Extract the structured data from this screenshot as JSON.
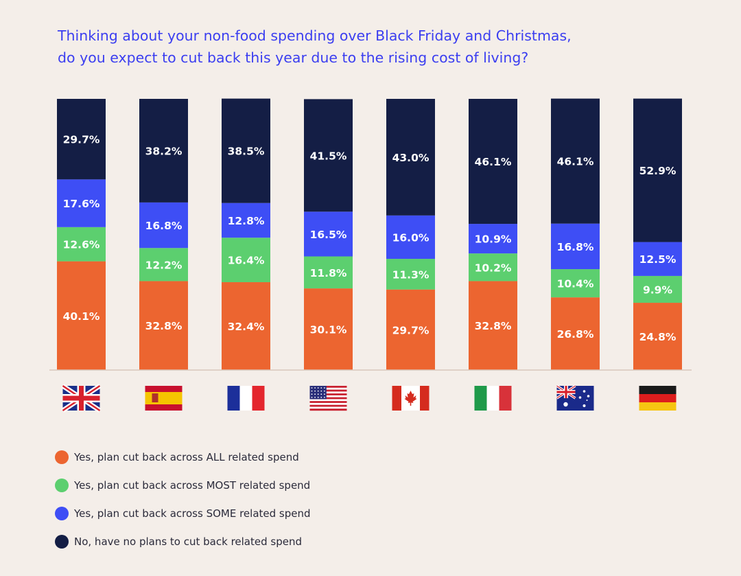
{
  "title_lines": [
    "Thinking about your non-food spending over Black Friday and Christmas,",
    "do you expect to cut back this year due to the rising cost of living?"
  ],
  "colors": {
    "background": "#f4eee9",
    "title": "#3b3ef0",
    "axis": "#d8c7bc"
  },
  "legend": [
    {
      "key": "all",
      "label": "Yes, plan cut back across ALL related spend",
      "color": "#ec6530"
    },
    {
      "key": "most",
      "label": "Yes, plan cut back across MOST related spend",
      "color": "#5ccf6f"
    },
    {
      "key": "some",
      "label": "Yes, plan cut back across SOME related spend",
      "color": "#3e4ef5"
    },
    {
      "key": "none",
      "label": "No, have no plans to cut back related spend",
      "color": "#141e45"
    }
  ],
  "chart_data": {
    "type": "bar",
    "stacked": true,
    "categories": [
      "uk-flag",
      "spain-flag",
      "france-flag",
      "usa-flag",
      "canada-flag",
      "italy-flag",
      "australia-flag",
      "germany-flag"
    ],
    "ylim": [
      0,
      100
    ],
    "grid": false,
    "legend_position": "bottom-left",
    "series": [
      {
        "key": "all",
        "color": "#ec6530",
        "values": [
          40.1,
          32.8,
          32.4,
          30.1,
          29.7,
          32.8,
          26.8,
          24.8
        ],
        "labels": [
          "40.1%",
          "32.8%",
          "32.4%",
          "30.1%",
          "29.7%",
          "32.8%",
          "26.8%",
          "24.8%"
        ]
      },
      {
        "key": "most",
        "color": "#5ccf6f",
        "values": [
          12.6,
          12.2,
          16.4,
          11.8,
          11.3,
          10.2,
          10.4,
          9.9
        ],
        "labels": [
          "12.6%",
          "12.2%",
          "16.4%",
          "11.8%",
          "11.3%",
          "10.2%",
          "10.4%",
          "9.9%"
        ]
      },
      {
        "key": "some",
        "color": "#3e4ef5",
        "values": [
          17.6,
          16.8,
          12.8,
          16.5,
          16.0,
          10.9,
          16.8,
          12.5
        ],
        "labels": [
          "17.6%",
          "16.8%",
          "12.8%",
          "16.5%",
          "16.0%",
          "10.9%",
          "16.8%",
          "12.5%"
        ]
      },
      {
        "key": "none",
        "color": "#141e45",
        "values": [
          29.7,
          38.2,
          38.5,
          41.5,
          43.0,
          46.1,
          46.1,
          52.9
        ],
        "labels": [
          "29.7%",
          "38.2%",
          "38.5%",
          "41.5%",
          "43.0%",
          "46.1%",
          "46.1%",
          "52.9%"
        ]
      }
    ]
  }
}
